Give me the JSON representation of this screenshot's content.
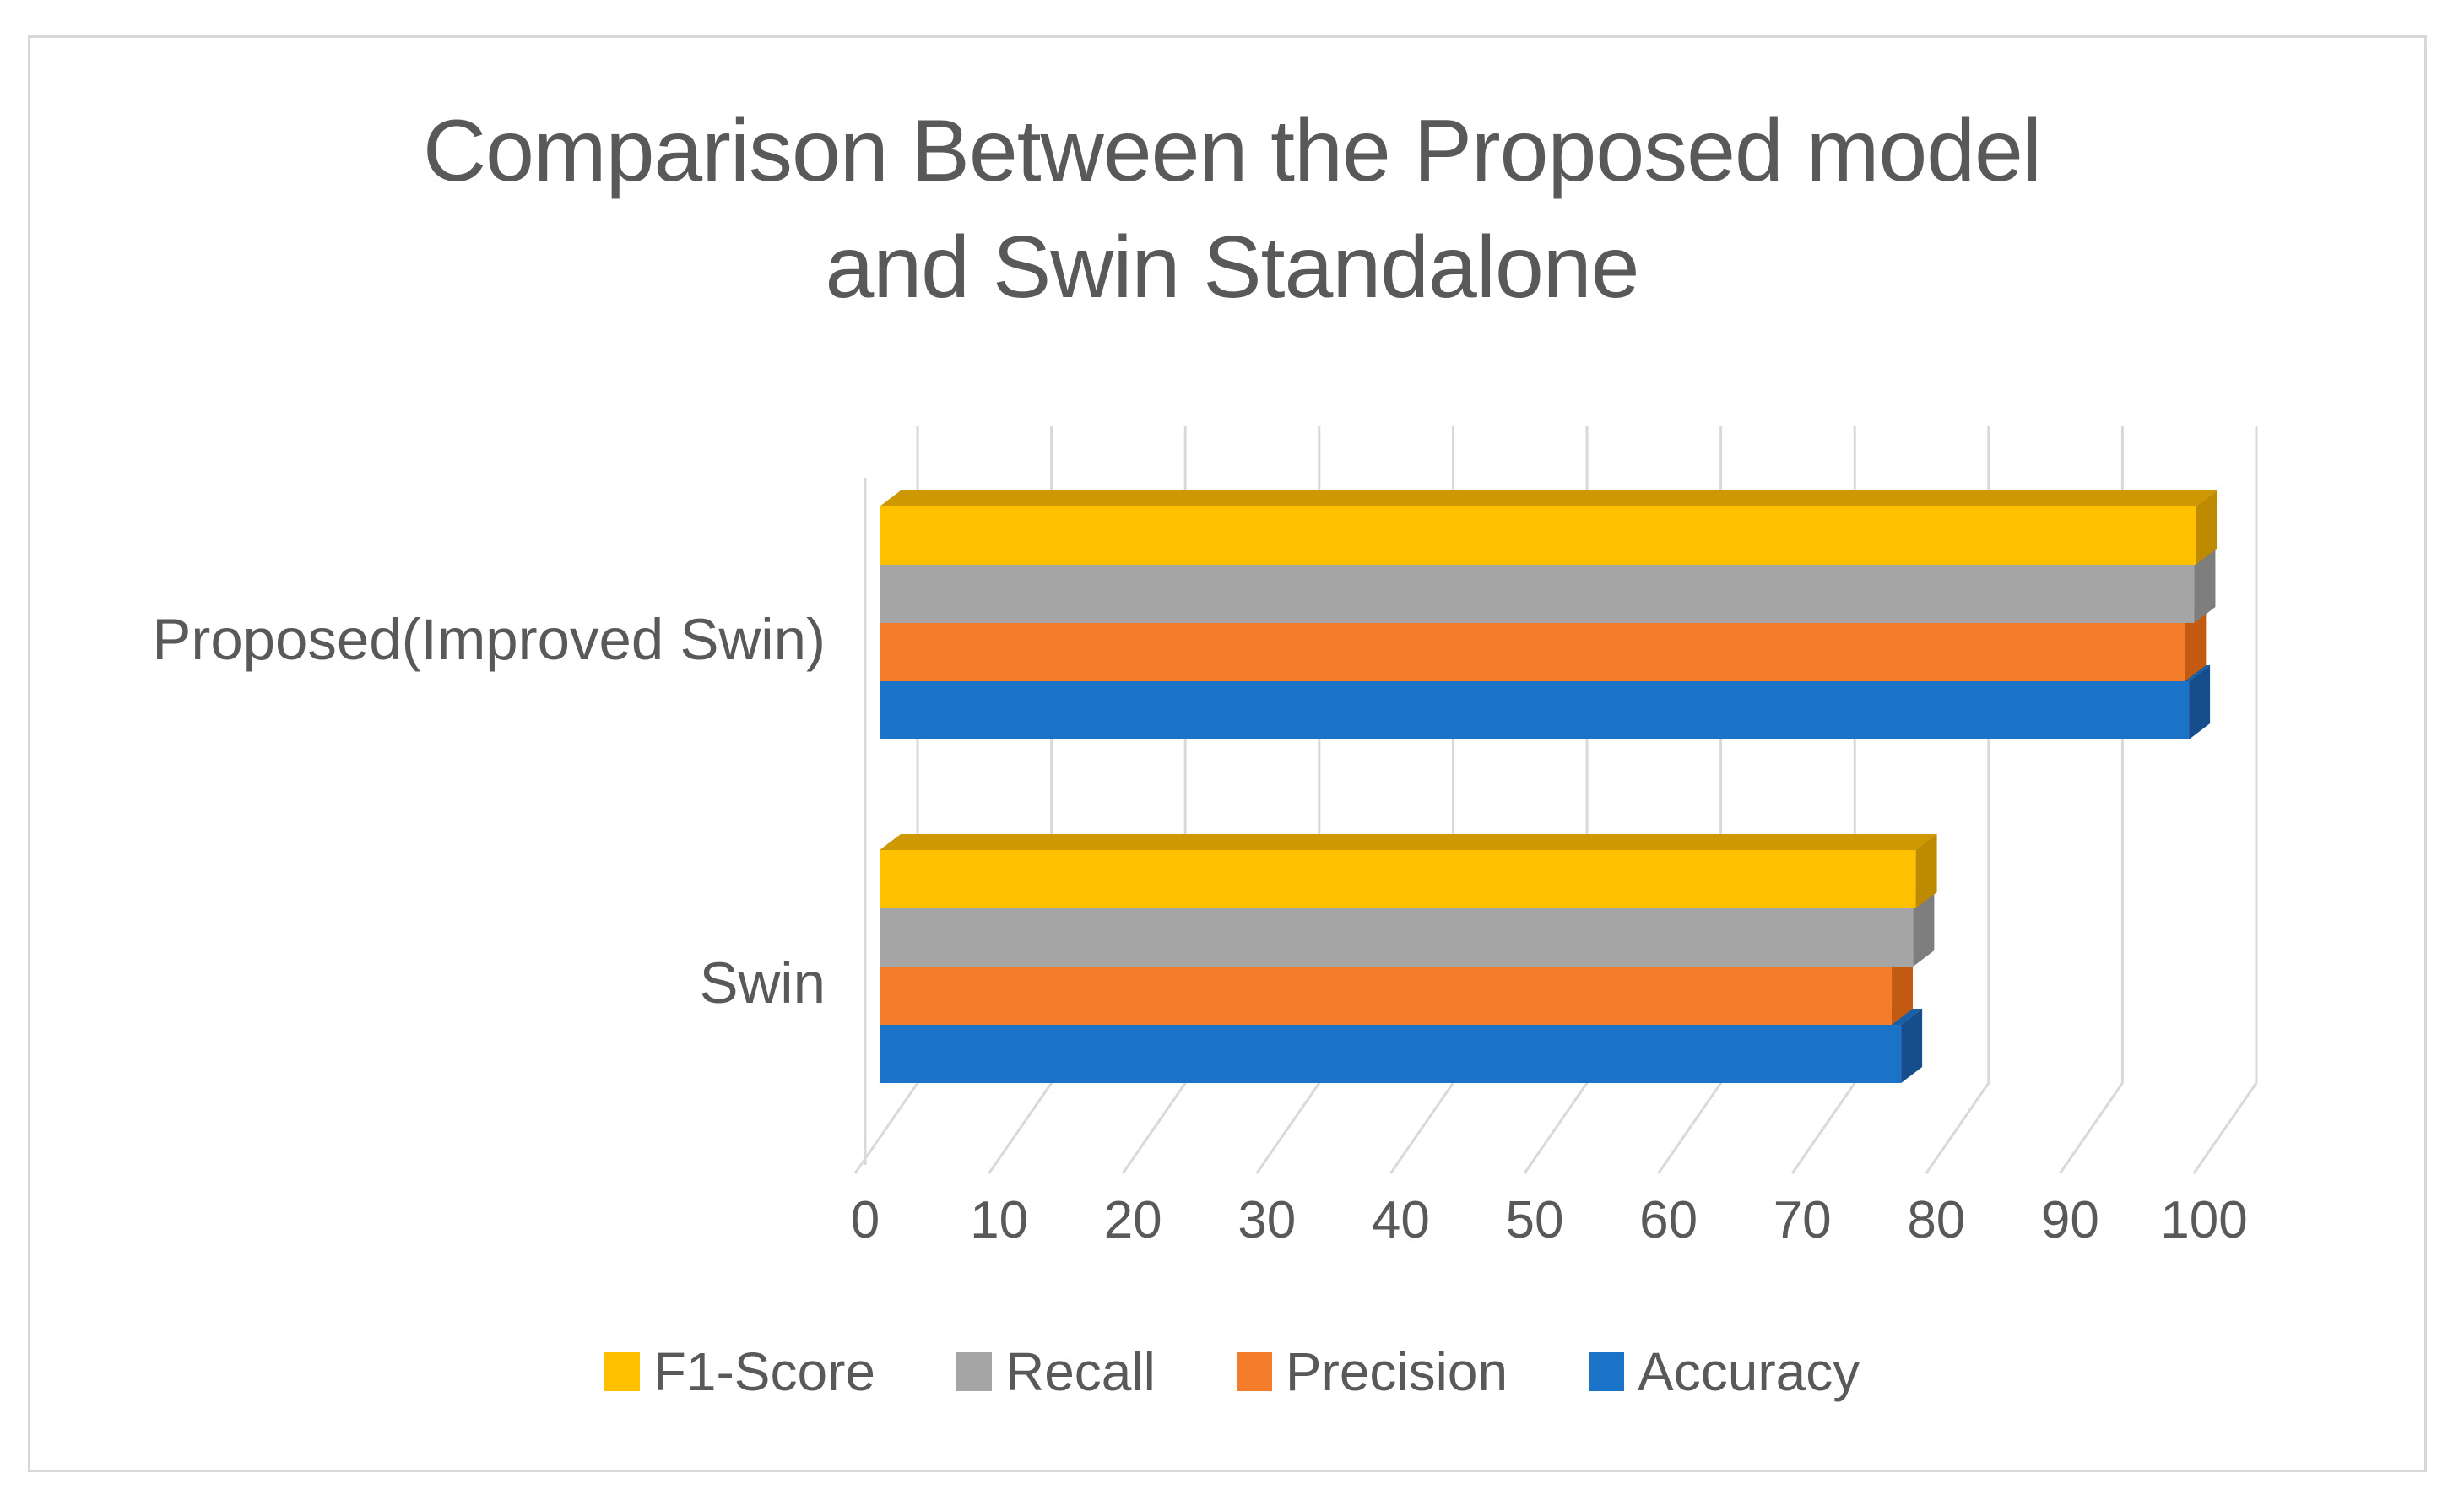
{
  "figure": {
    "title_line1": "Comparison Between the Proposed model",
    "title_line2": "and Swin Standalone"
  },
  "chart_data": {
    "type": "bar",
    "style": "3d-clustered-horizontal",
    "title": "Comparison Between the Proposed model and Swin Standalone",
    "categories": [
      "Proposed(Improved Swin)",
      "Swin"
    ],
    "series": [
      {
        "name": "F1-Score",
        "color": "#FFC000",
        "top_color": "#CD9802",
        "side_color": "#BD8A00",
        "values": [
          98.3,
          77.4
        ]
      },
      {
        "name": "Recall",
        "color": "#A5A5A5",
        "top_color": "#8F8F8F",
        "side_color": "#7E7E7E",
        "values": [
          98.2,
          77.2
        ]
      },
      {
        "name": "Precision",
        "color": "#F47D2B",
        "top_color": "#D2691C",
        "side_color": "#C35A12",
        "values": [
          97.5,
          75.6
        ]
      },
      {
        "name": "Accuracy",
        "color": "#1B73C7",
        "top_color": "#1760A8",
        "side_color": "#164D8C",
        "values": [
          97.8,
          76.3
        ]
      }
    ],
    "x_axis": {
      "min": 0,
      "max": 100,
      "ticks": [
        0,
        10,
        20,
        30,
        40,
        50,
        60,
        70,
        80,
        90,
        100
      ],
      "tick_labels": [
        "0",
        "10",
        "20",
        "30",
        "40",
        "50",
        "60",
        "70",
        "80",
        "90",
        "100"
      ]
    },
    "legend": {
      "position": "bottom",
      "labels": [
        "F1-Score",
        "Recall",
        "Precision",
        "Accuracy"
      ]
    },
    "gridlines": true,
    "ylim_note": "category axis, 2 groups of 4 bars"
  },
  "colors": {
    "text": "#595959",
    "gridline": "#D9D9D9",
    "frame_border": "#D8D8D8",
    "background": "#FFFFFF"
  }
}
